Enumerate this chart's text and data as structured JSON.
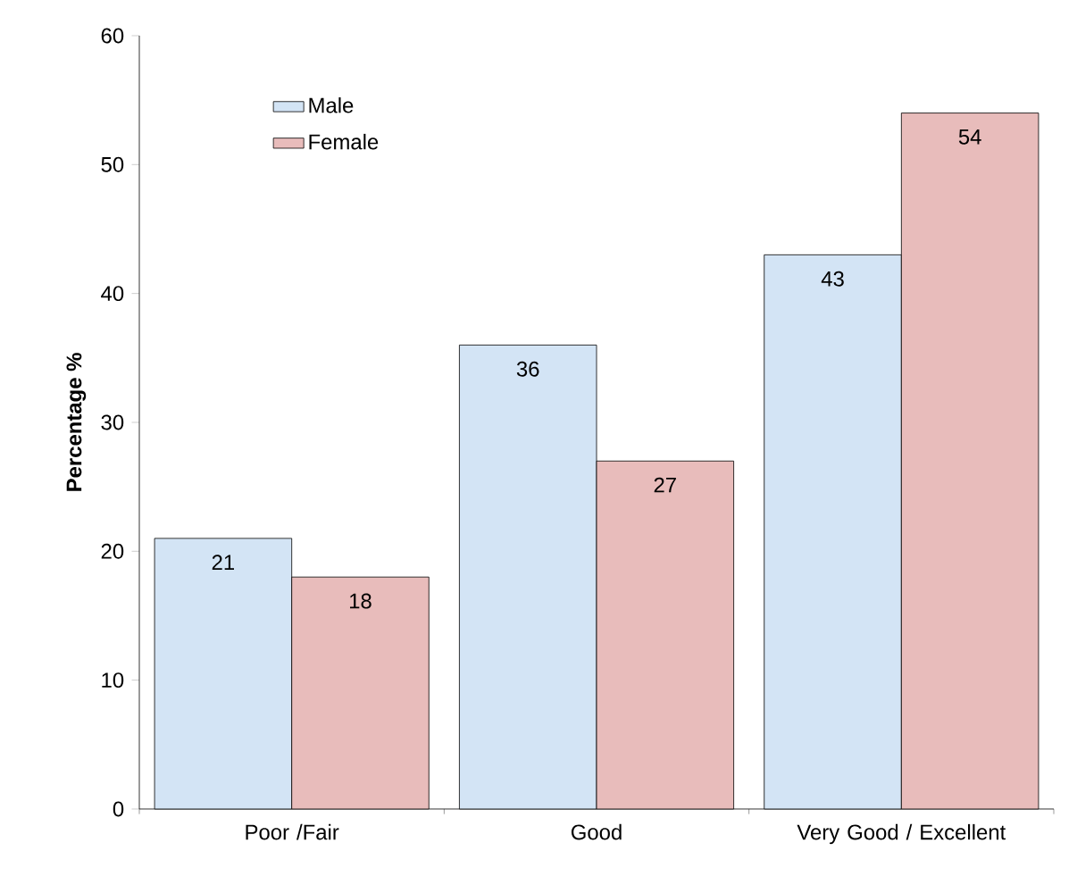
{
  "chart_data": {
    "type": "bar",
    "ylabel": "Percentage %",
    "categories": [
      "Poor /Fair",
      "Good",
      "Very Good / Excellent"
    ],
    "series": [
      {
        "name": "Male",
        "color": "#d3e4f5",
        "values": [
          21,
          36,
          43
        ]
      },
      {
        "name": "Female",
        "color": "#e8bcbb",
        "values": [
          18,
          27,
          54
        ]
      }
    ],
    "ylim": [
      0,
      60
    ],
    "yticks": [
      0,
      10,
      20,
      30,
      40,
      50,
      60
    ],
    "data_labels": true,
    "legend": "top left",
    "grid": false
  }
}
